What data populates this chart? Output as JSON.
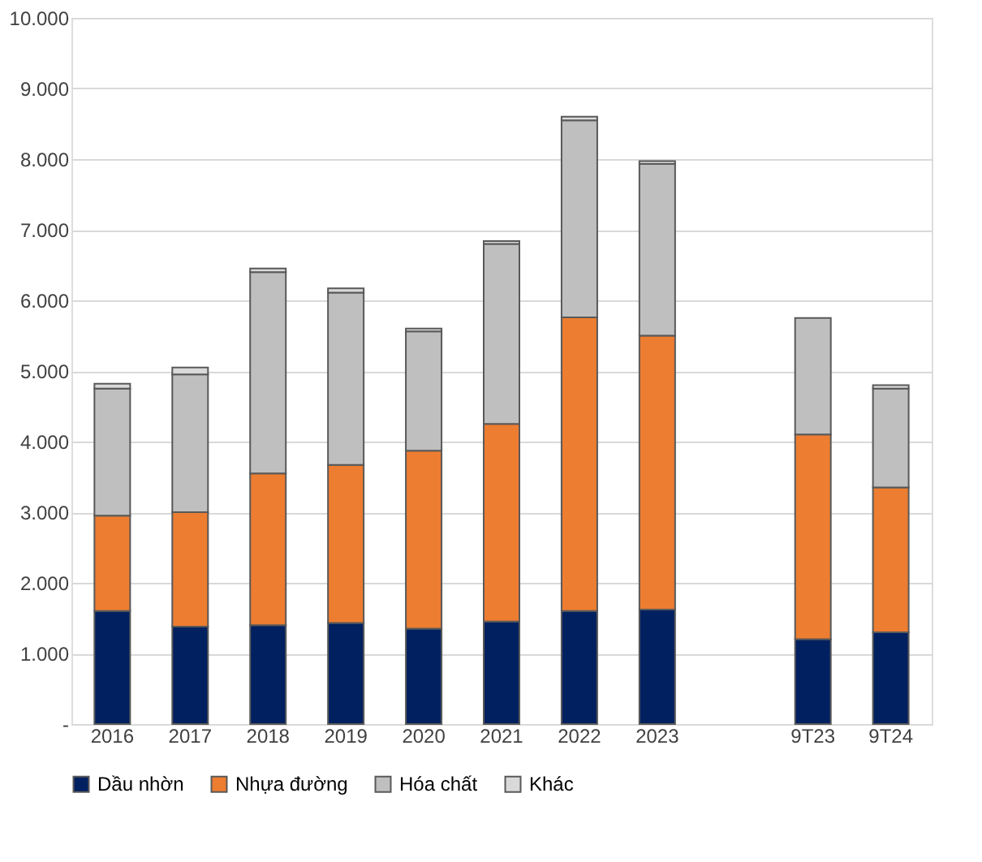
{
  "chart_data": {
    "type": "bar",
    "stacked": true,
    "categories": [
      "2016",
      "2017",
      "2018",
      "2019",
      "2020",
      "2021",
      "2022",
      "2023",
      null,
      "9T23",
      "9T24"
    ],
    "series": [
      {
        "name": "Dầu nhờn",
        "color": "#002060",
        "values": [
          1600,
          1380,
          1400,
          1430,
          1350,
          1450,
          1600,
          1620,
          null,
          1200,
          1300
        ]
      },
      {
        "name": "Nhựa đường",
        "color": "#ed7d31",
        "values": [
          1350,
          1620,
          2150,
          2240,
          2520,
          2800,
          4160,
          3880,
          null,
          2900,
          2050
        ]
      },
      {
        "name": "Hóa chất",
        "color": "#bfbfbf",
        "values": [
          1800,
          1950,
          2850,
          2440,
          1690,
          2550,
          2790,
          2430,
          null,
          1650,
          1400
        ]
      },
      {
        "name": "Khác",
        "color": "#d9d9d9",
        "values": [
          70,
          100,
          50,
          60,
          40,
          40,
          50,
          40,
          null,
          null,
          50
        ]
      }
    ],
    "ylim": [
      0,
      10000
    ],
    "yticks": [
      {
        "value": 0,
        "label": "-"
      },
      {
        "value": 1000,
        "label": "1.000"
      },
      {
        "value": 2000,
        "label": "2.000"
      },
      {
        "value": 3000,
        "label": "3.000"
      },
      {
        "value": 4000,
        "label": "4.000"
      },
      {
        "value": 5000,
        "label": "5.000"
      },
      {
        "value": 6000,
        "label": "6.000"
      },
      {
        "value": 7000,
        "label": "7.000"
      },
      {
        "value": 8000,
        "label": "8.000"
      },
      {
        "value": 9000,
        "label": "9.000"
      },
      {
        "value": 10000,
        "label": "10.000"
      }
    ],
    "grid": "y",
    "legend": "bottom"
  }
}
